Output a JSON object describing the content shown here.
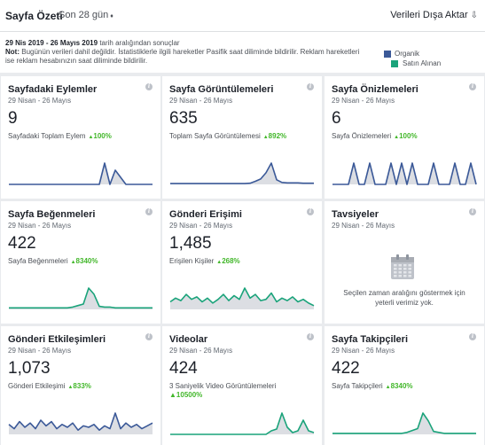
{
  "header": {
    "title": "Sayfa Özeti",
    "period": "Son 28 gün",
    "export_label": "Verileri Dışa Aktar"
  },
  "info": {
    "range_dates": "29 Nis 2019 - 26 Mayıs 2019",
    "range_suffix": "tarih aralığından sonuçlar",
    "note_prefix": "Not:",
    "note_text": "Bugünün verileri dahil değildir. İstatistiklerle ilgili hareketler Pasifik saat diliminde bildirilir. Reklam hareketleri ise reklam hesabınızın saat diliminde bildirilir."
  },
  "legend": {
    "organic": "Organik",
    "paid": "Satın Alınan",
    "organic_color": "#3b5998",
    "paid_color": "#1aa37a"
  },
  "cards": [
    {
      "title": "Sayfadaki Eylemler",
      "date": "29 Nisan - 26 Mayıs",
      "value": "9",
      "label": "Sayfadaki Toplam Eylem",
      "change": "100%",
      "color": "#3b5998",
      "series": [
        0,
        0,
        0,
        0,
        0,
        0,
        0,
        0,
        0,
        0,
        0,
        0,
        0,
        0,
        0,
        0,
        0,
        0,
        3,
        0,
        2,
        1,
        0,
        0,
        0,
        0,
        0,
        0
      ]
    },
    {
      "title": "Sayfa Görüntülemeleri",
      "date": "29 Nisan - 26 Mayıs",
      "value": "635",
      "label": "Toplam Sayfa Görüntülemesi",
      "change": "892%",
      "color": "#3b5998",
      "series": [
        2,
        2,
        2,
        2,
        2,
        2,
        2,
        2,
        2,
        2,
        2,
        2,
        2,
        2,
        2,
        3,
        8,
        14,
        30,
        55,
        12,
        5,
        4,
        4,
        4,
        3,
        3,
        3
      ]
    },
    {
      "title": "Sayfa Önizlemeleri",
      "date": "29 Nisan - 26 Mayıs",
      "value": "6",
      "label": "Sayfa Önizlemeleri",
      "change": "100%",
      "color": "#3b5998",
      "series": [
        0,
        0,
        0,
        0,
        1,
        0,
        0,
        1,
        0,
        0,
        0,
        1,
        0,
        1,
        0,
        1,
        0,
        0,
        0,
        1,
        0,
        0,
        0,
        1,
        0,
        0,
        1,
        0
      ]
    },
    {
      "title": "Sayfa Beğenmeleri",
      "date": "29 Nisan - 26 Mayıs",
      "value": "422",
      "label": "Sayfa Beğenmeleri",
      "change": "8340%",
      "color": "#1aa37a",
      "series": [
        2,
        2,
        2,
        2,
        2,
        2,
        2,
        2,
        2,
        2,
        2,
        2,
        3,
        5,
        7,
        28,
        20,
        4,
        3,
        3,
        2,
        2,
        2,
        2,
        2,
        2,
        2,
        2
      ]
    },
    {
      "title": "Gönderi Erişimi",
      "date": "29 Nisan - 26 Mayıs",
      "value": "1,485",
      "label": "Erişilen Kişiler",
      "change": "268%",
      "color": "#1aa37a",
      "series": [
        6,
        9,
        7,
        12,
        8,
        10,
        6,
        9,
        5,
        8,
        12,
        7,
        11,
        8,
        17,
        9,
        12,
        7,
        8,
        13,
        6,
        9,
        7,
        10,
        6,
        8,
        5,
        3
      ]
    },
    {
      "title": "Tavsiyeler",
      "date": "29 Nisan - 26 Mayıs",
      "empty": true,
      "empty_text": "Seçilen zaman aralığını göstermek için yeterli verimiz yok."
    },
    {
      "title": "Gönderi Etkileşimleri",
      "date": "29 Nisan - 26 Mayıs",
      "value": "1,073",
      "label": "Gönderi Etkileşimi",
      "change": "833%",
      "color": "#3b5998",
      "series": [
        7,
        4,
        9,
        5,
        8,
        4,
        10,
        6,
        9,
        4,
        7,
        5,
        8,
        3,
        6,
        5,
        7,
        3,
        6,
        4,
        15,
        4,
        8,
        5,
        7,
        4,
        6,
        8
      ]
    },
    {
      "title": "Videolar",
      "date": "29 Nisan - 26 Mayıs",
      "value": "424",
      "label": "3 Saniyelik Video Görüntülemeleri",
      "change": "10500%",
      "color": "#1aa37a",
      "series": [
        0,
        0,
        0,
        0,
        0,
        0,
        0,
        0,
        0,
        0,
        0,
        0,
        0,
        0,
        0,
        0,
        0,
        0,
        0,
        2,
        3,
        12,
        4,
        1,
        2,
        8,
        2,
        1
      ]
    },
    {
      "title": "Sayfa Takipçileri",
      "date": "29 Nisan - 26 Mayıs",
      "value": "422",
      "label": "Sayfa Takipçileri",
      "change": "8340%",
      "color": "#1aa37a",
      "series": [
        1,
        1,
        1,
        1,
        1,
        1,
        1,
        1,
        1,
        1,
        1,
        1,
        1,
        1,
        2,
        4,
        6,
        22,
        14,
        3,
        2,
        1,
        1,
        1,
        1,
        1,
        1,
        1
      ]
    }
  ]
}
